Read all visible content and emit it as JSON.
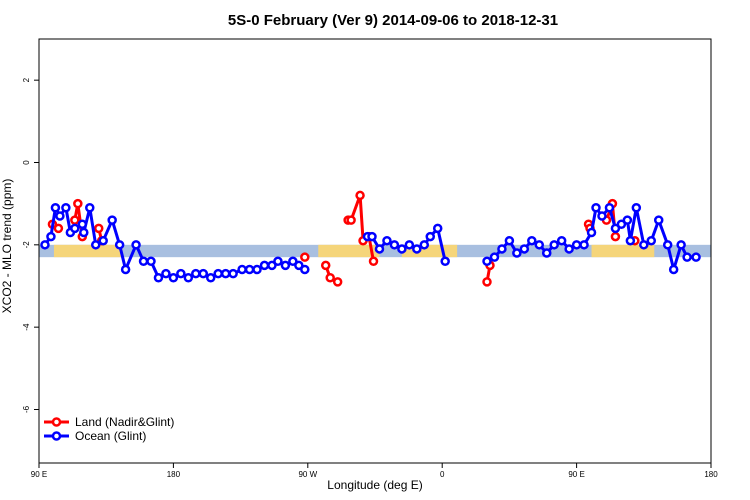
{
  "chart_data": {
    "type": "line",
    "title": "5S-0 February (Ver 9)   2014-09-06 to 2018-12-31",
    "xlabel": "Longitude (deg E)",
    "ylabel": "XCO2 - MLO trend (ppm)",
    "xlim": [
      90,
      540
    ],
    "ylim": [
      -7.3,
      3.0
    ],
    "x_ticks": [
      {
        "value": 90,
        "label": "90 E"
      },
      {
        "value": 180,
        "label": "180"
      },
      {
        "value": 270,
        "label": "90 W"
      },
      {
        "value": 360,
        "label": "0"
      },
      {
        "value": 450,
        "label": "90 E"
      },
      {
        "value": 540,
        "label": "180"
      }
    ],
    "y_ticks": [
      {
        "value": 2,
        "label": "2"
      },
      {
        "value": 0,
        "label": "0"
      },
      {
        "value": -2,
        "label": "-2"
      },
      {
        "value": -4,
        "label": "-4"
      },
      {
        "value": -6,
        "label": "-6"
      }
    ],
    "band": {
      "ymin": -2.3,
      "ymax": -2.0,
      "ocean_color": "#a8bfe0",
      "land_color": "#f5d57a",
      "land_ranges": [
        [
          100,
          146
        ],
        [
          277,
          318
        ],
        [
          333,
          370
        ],
        [
          460,
          502
        ]
      ]
    },
    "series": [
      {
        "name": "Land (Nadir&Glint)",
        "color": "#ff0000",
        "segments": [
          [
            [
              99,
              -1.5
            ],
            [
              103,
              -1.6
            ]
          ],
          [
            [
              114,
              -1.4
            ],
            [
              116,
              -1.0
            ],
            [
              119,
              -1.8
            ]
          ],
          [
            [
              130,
              -1.6
            ],
            [
              132,
              -1.9
            ]
          ],
          [
            [
              268,
              -2.3
            ]
          ],
          [
            [
              282,
              -2.5
            ],
            [
              285,
              -2.8
            ],
            [
              290,
              -2.9
            ]
          ],
          [
            [
              297,
              -1.4
            ],
            [
              299,
              -1.4
            ],
            [
              305,
              -0.8
            ],
            [
              307,
              -1.9
            ],
            [
              311,
              -1.8
            ],
            [
              314,
              -2.4
            ]
          ],
          [
            [
              390,
              -2.9
            ],
            [
              392,
              -2.5
            ]
          ],
          [
            [
              458,
              -1.5
            ],
            [
              459,
              -1.6
            ]
          ],
          [
            [
              470,
              -1.4
            ],
            [
              474,
              -1.0
            ],
            [
              476,
              -1.8
            ]
          ],
          [
            [
              489,
              -1.9
            ]
          ]
        ]
      },
      {
        "name": "Ocean (Glint)",
        "color": "#0000ff",
        "segments": [
          [
            [
              94,
              -2.0
            ],
            [
              98,
              -1.8
            ],
            [
              101,
              -1.1
            ],
            [
              104,
              -1.3
            ],
            [
              108,
              -1.1
            ],
            [
              111,
              -1.7
            ],
            [
              114,
              -1.6
            ],
            [
              119,
              -1.5
            ],
            [
              120,
              -1.7
            ],
            [
              124,
              -1.1
            ],
            [
              128,
              -2.0
            ],
            [
              133,
              -1.9
            ],
            [
              139,
              -1.4
            ],
            [
              144,
              -2.0
            ],
            [
              148,
              -2.6
            ],
            [
              155,
              -2.0
            ],
            [
              160,
              -2.4
            ],
            [
              165,
              -2.4
            ],
            [
              170,
              -2.8
            ],
            [
              175,
              -2.7
            ],
            [
              180,
              -2.8
            ],
            [
              185,
              -2.7
            ],
            [
              190,
              -2.8
            ],
            [
              195,
              -2.7
            ],
            [
              200,
              -2.7
            ],
            [
              205,
              -2.8
            ],
            [
              210,
              -2.7
            ],
            [
              215,
              -2.7
            ],
            [
              220,
              -2.7
            ],
            [
              226,
              -2.6
            ],
            [
              231,
              -2.6
            ],
            [
              236,
              -2.6
            ],
            [
              241,
              -2.5
            ],
            [
              246,
              -2.5
            ],
            [
              250,
              -2.4
            ],
            [
              255,
              -2.5
            ],
            [
              260,
              -2.4
            ],
            [
              264,
              -2.5
            ],
            [
              268,
              -2.6
            ]
          ],
          [
            [
              310,
              -1.8
            ],
            [
              313,
              -1.8
            ],
            [
              318,
              -2.1
            ],
            [
              323,
              -1.9
            ],
            [
              328,
              -2.0
            ],
            [
              333,
              -2.1
            ],
            [
              338,
              -2.0
            ],
            [
              343,
              -2.1
            ],
            [
              348,
              -2.0
            ],
            [
              352,
              -1.8
            ],
            [
              357,
              -1.6
            ],
            [
              362,
              -2.4
            ]
          ],
          [
            [
              390,
              -2.4
            ],
            [
              395,
              -2.3
            ],
            [
              400,
              -2.1
            ],
            [
              405,
              -1.9
            ],
            [
              410,
              -2.2
            ],
            [
              415,
              -2.1
            ],
            [
              420,
              -1.9
            ],
            [
              425,
              -2.0
            ],
            [
              430,
              -2.2
            ],
            [
              435,
              -2.0
            ],
            [
              440,
              -1.9
            ],
            [
              445,
              -2.1
            ],
            [
              450,
              -2.0
            ],
            [
              455,
              -2.0
            ],
            [
              460,
              -1.7
            ],
            [
              463,
              -1.1
            ],
            [
              467,
              -1.3
            ],
            [
              472,
              -1.1
            ],
            [
              476,
              -1.6
            ],
            [
              480,
              -1.5
            ],
            [
              484,
              -1.4
            ],
            [
              486,
              -1.9
            ],
            [
              490,
              -1.1
            ],
            [
              495,
              -2.0
            ],
            [
              500,
              -1.9
            ],
            [
              505,
              -1.4
            ],
            [
              511,
              -2.0
            ],
            [
              515,
              -2.6
            ],
            [
              520,
              -2.0
            ],
            [
              524,
              -2.3
            ],
            [
              530,
              -2.3
            ]
          ]
        ]
      }
    ],
    "legend": {
      "position": "bottom-left"
    }
  }
}
